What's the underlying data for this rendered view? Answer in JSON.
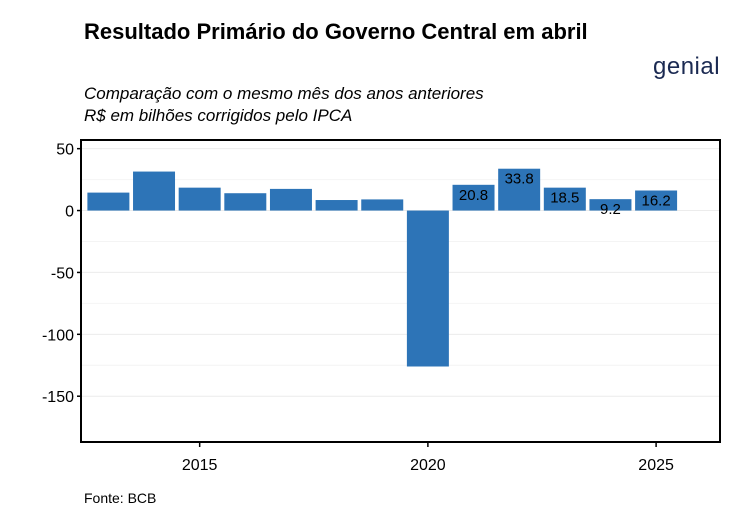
{
  "title": "Resultado Primário do Governo Central em abril",
  "subtitle_line1": "Comparação com o mesmo mês dos anos anteriores",
  "subtitle_line2": "R$ em bilhões corrigidos pelo IPCA",
  "logo": "genial",
  "source": "Fonte: BCB",
  "colors": {
    "bar": "#2d74b7",
    "logo": "#1b2a52"
  },
  "chart_data": {
    "type": "bar",
    "x": [
      2013,
      2014,
      2015,
      2016,
      2017,
      2018,
      2019,
      2020,
      2021,
      2022,
      2023,
      2024,
      2025
    ],
    "values": [
      14.5,
      31.5,
      18.5,
      14.0,
      17.5,
      8.5,
      9.0,
      -126.0,
      20.8,
      33.8,
      18.5,
      9.2,
      16.2
    ],
    "data_labels": [
      null,
      null,
      null,
      null,
      null,
      null,
      null,
      null,
      "20.8",
      "33.8",
      "18.5",
      "9.2",
      "16.2"
    ],
    "xticks": [
      2015,
      2020,
      2025
    ],
    "xtick_labels": [
      "2015",
      "2020",
      "2025"
    ],
    "yticks": [
      50,
      0,
      -50,
      -100,
      -150
    ],
    "ytick_labels": [
      "50",
      "0",
      "-50",
      "-100",
      "-150"
    ],
    "ylim": [
      -187,
      57
    ],
    "xlim": [
      2012.4,
      2026.4
    ],
    "grid": true,
    "xlabel": "",
    "ylabel": ""
  }
}
